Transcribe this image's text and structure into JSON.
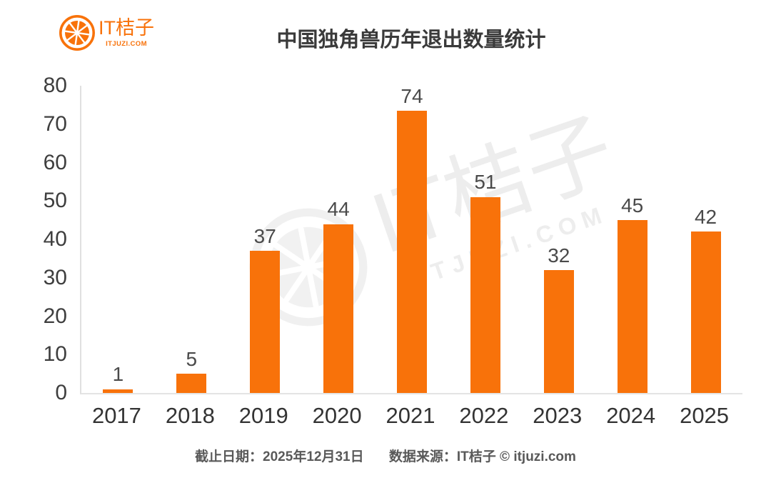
{
  "logo": {
    "name": "IT桔子",
    "domain": "ITJUZI.COM"
  },
  "chart_data": {
    "type": "bar",
    "title": "中国独角兽历年退出数量统计",
    "categories": [
      "2017",
      "2018",
      "2019",
      "2020",
      "2021",
      "2022",
      "2023",
      "2024",
      "2025"
    ],
    "values": [
      1,
      5,
      37,
      44,
      74,
      51,
      32,
      45,
      42
    ],
    "xlabel": "",
    "ylabel": "",
    "ylim": [
      0,
      80
    ],
    "yticks": [
      0,
      10,
      20,
      30,
      40,
      50,
      60,
      70,
      80
    ],
    "grid": false,
    "legend": "none",
    "value_labels": true,
    "bar_color": "#F8720A"
  },
  "footer": {
    "deadline": "截止日期：2025年12月31日",
    "source": "数据来源：IT桔子 © itjuzi.com"
  },
  "colors": {
    "accent": "#F8720A",
    "axis_line": "#E0E0E0",
    "baseline": "#E4E4E4",
    "title_text": "#3A3A3A",
    "label_text": "#4A4A4A",
    "tick_text": "#3E3E3E",
    "footer_text": "#595959",
    "watermark": "#EDEDED"
  }
}
